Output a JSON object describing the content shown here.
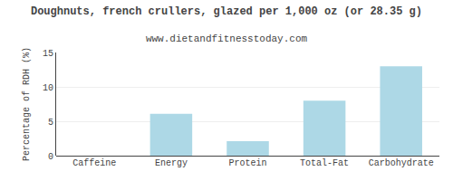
{
  "chart_data": {
    "type": "bar",
    "title": "Doughnuts, french crullers, glazed per 1,000 oz (or 28.35 g)",
    "subtitle": "www.dietandfitnesstoday.com",
    "categories": [
      "Caffeine",
      "Energy",
      "Protein",
      "Total-Fat",
      "Carbohydrate"
    ],
    "values": [
      0,
      6.1,
      2.1,
      8.0,
      13.0
    ],
    "color": "#add8e6",
    "ylabel": "Percentage of RDH (%)",
    "ylim": [
      0,
      15
    ],
    "yticks": [
      0,
      5,
      10,
      15
    ],
    "grid": true
  }
}
